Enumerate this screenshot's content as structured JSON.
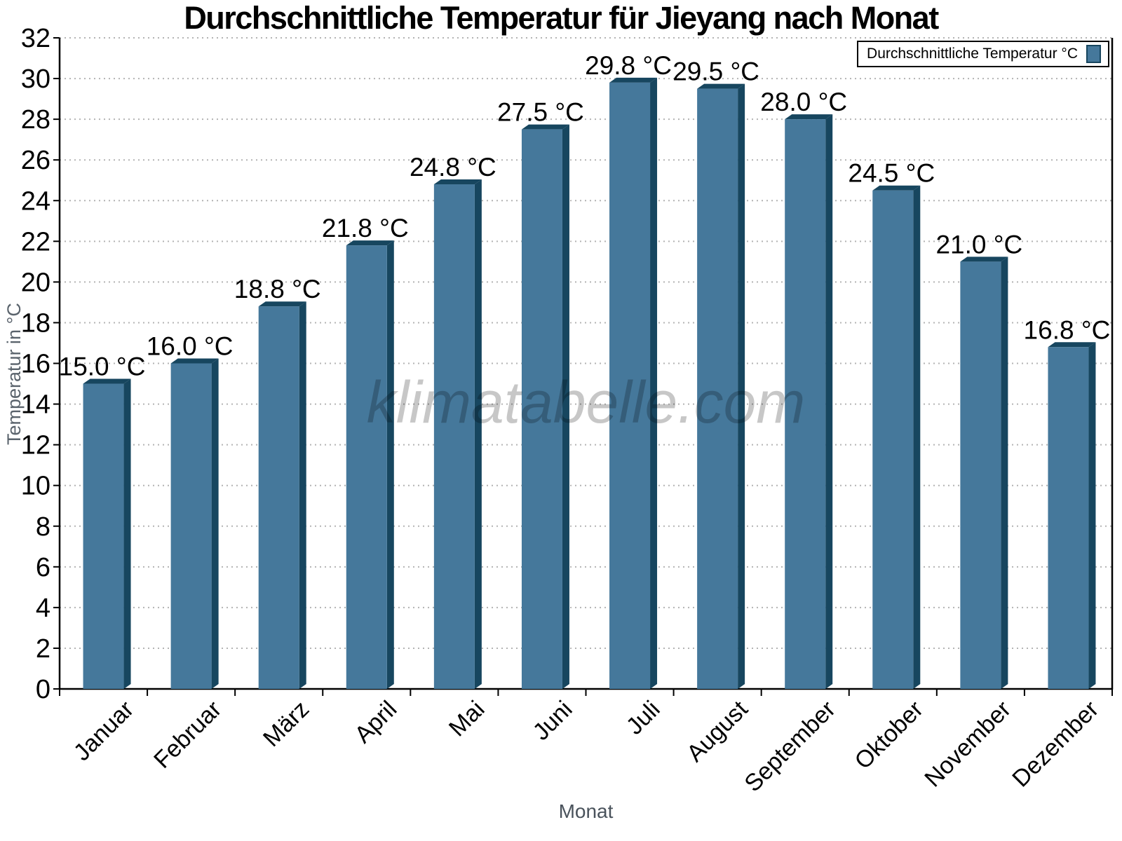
{
  "watermark": "klimatabelle.com",
  "colors": {
    "bar_face": "#45789b",
    "bar_dark": "#17465f",
    "grid": "#b3b3b3",
    "axis": "#000000",
    "text": "#000000"
  },
  "chart_data": {
    "type": "bar",
    "title": "Durchschnittliche Temperatur für Jieyang nach Monat",
    "legend": "Durchschnittliche Temperatur °C",
    "legend_position": "top-right",
    "categories": [
      "Januar",
      "Februar",
      "März",
      "April",
      "Mai",
      "Juni",
      "Juli",
      "August",
      "September",
      "Oktober",
      "November",
      "Dezember"
    ],
    "values": [
      15.0,
      16.0,
      18.8,
      21.8,
      24.8,
      27.5,
      29.8,
      29.5,
      28.0,
      24.5,
      21.0,
      16.8
    ],
    "value_suffix": " °C",
    "value_decimals": 1,
    "xlabel": "Monat",
    "ylabel": "Temperatur in °C",
    "ylim": [
      0,
      32
    ],
    "ytick_step": 2,
    "grid": "horizontal-dotted",
    "bar_style": "3d-extruded"
  }
}
